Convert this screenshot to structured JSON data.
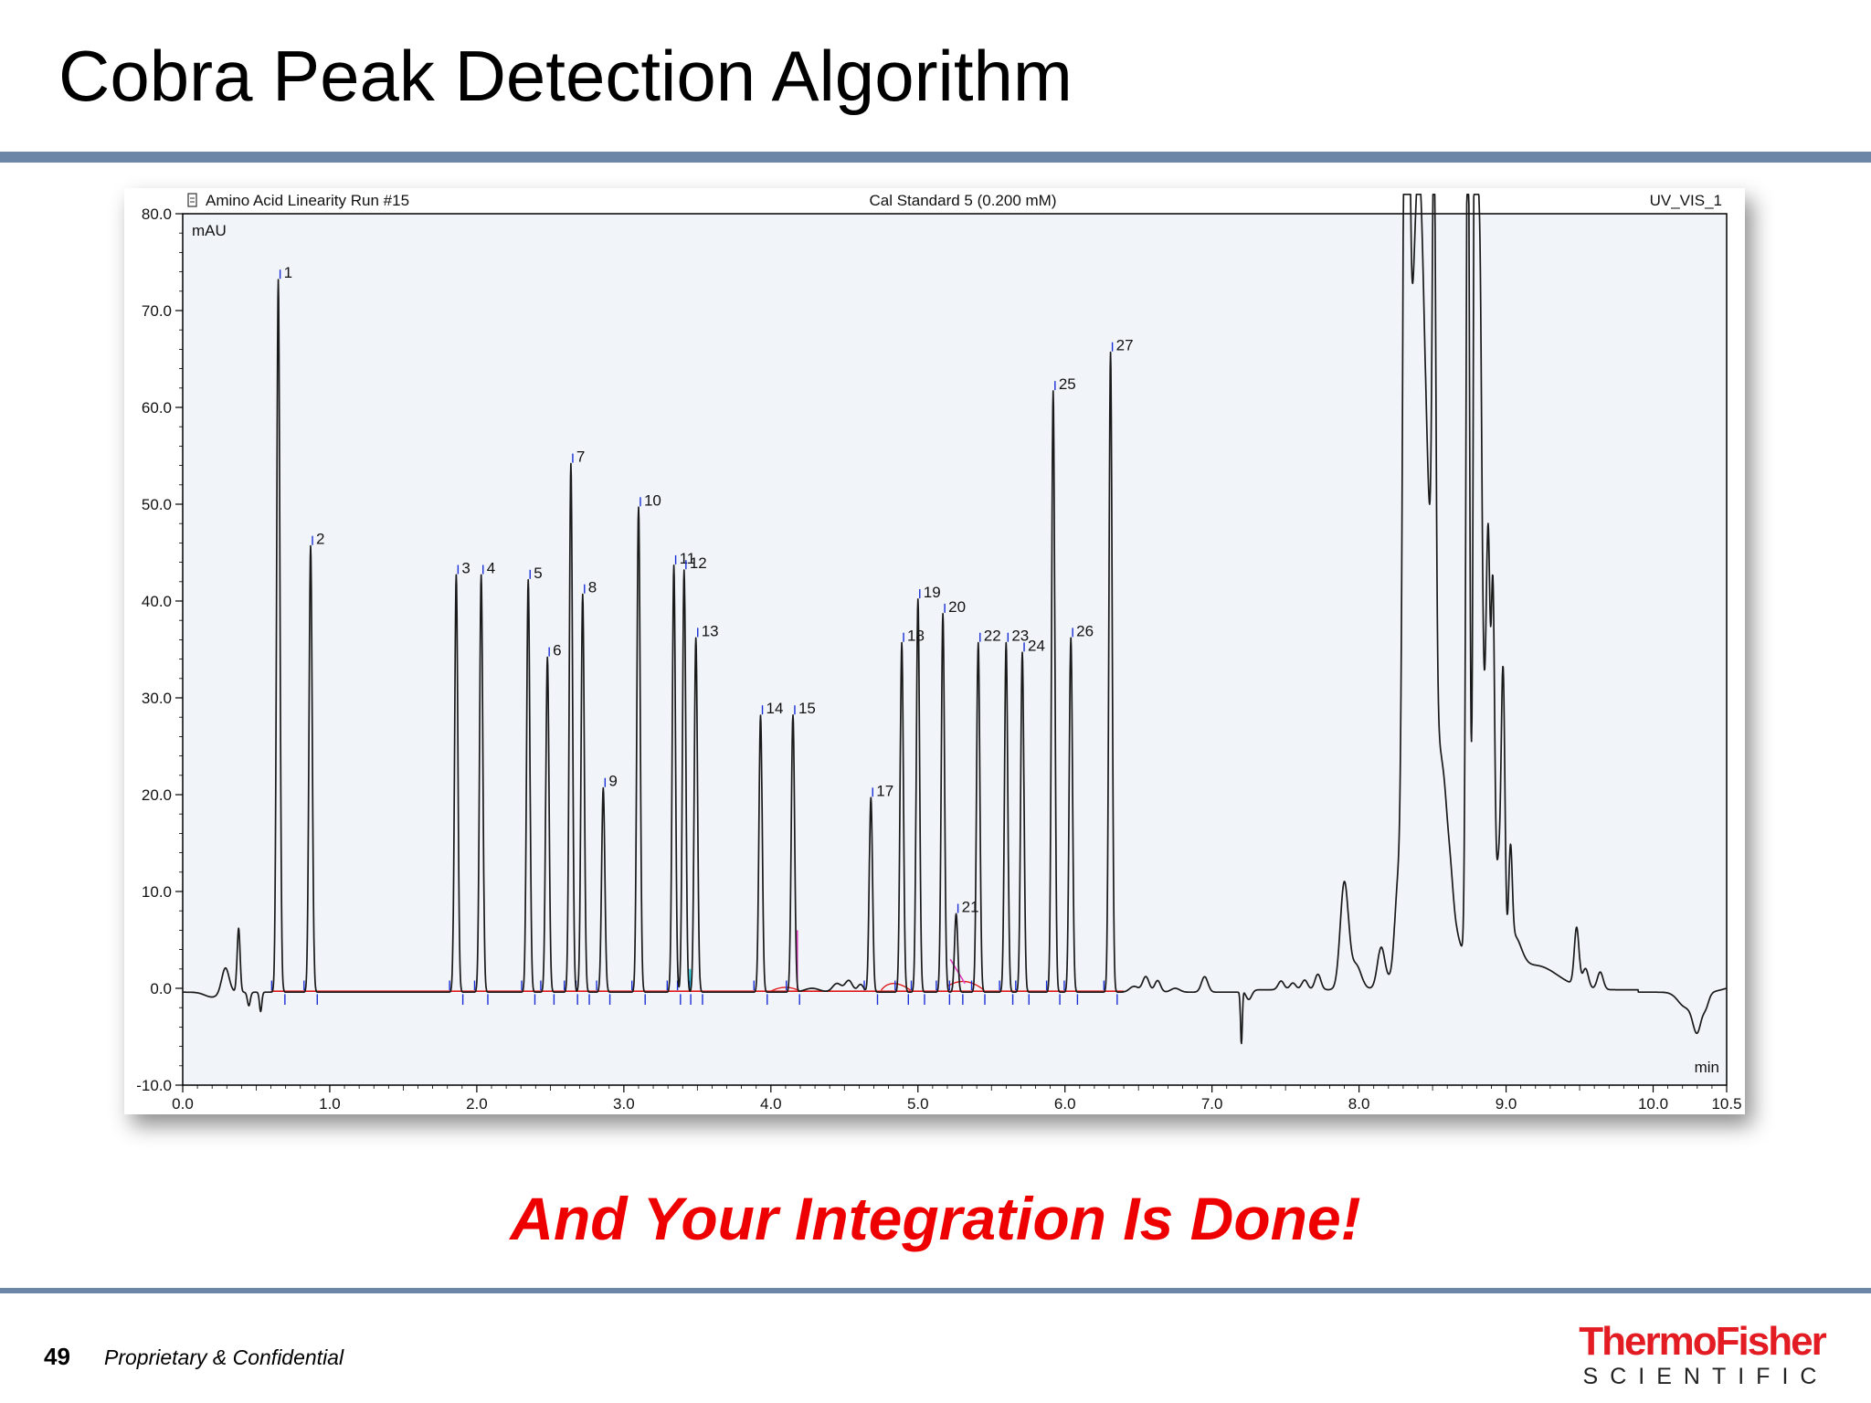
{
  "slide": {
    "title": "Cobra Peak Detection Algorithm",
    "tagline": "And Your Integration Is Done!",
    "page_number": "49",
    "confidential": "Proprietary & Confidential",
    "logo": {
      "main": "ThermoFisher",
      "sub": "SCIENTIFIC"
    }
  },
  "colors": {
    "rule": "#6b86a6",
    "tagline": "#ee0000",
    "trace": "#1a1a1a",
    "baseline": "#e01818",
    "peak_marker": "#1a2fd6",
    "plot_bg": "#f1f5fa",
    "logo_red": "#e31b23"
  },
  "chart_data": {
    "type": "line",
    "header_left": "Amino Acid Linearity Run #15",
    "header_center": "Cal Standard 5 (0.200 mM)",
    "header_right": "UV_VIS_1",
    "ylabel": "mAU",
    "xlabel": "min",
    "xlim": [
      0.0,
      10.5
    ],
    "ylim": [
      -10.0,
      80.0
    ],
    "x_ticks": [
      {
        "v": 0.0,
        "label": "0.0"
      },
      {
        "v": 1.0,
        "label": "1.0"
      },
      {
        "v": 2.0,
        "label": "2.0"
      },
      {
        "v": 3.0,
        "label": "3.0"
      },
      {
        "v": 4.0,
        "label": "4.0"
      },
      {
        "v": 5.0,
        "label": "5.0"
      },
      {
        "v": 6.0,
        "label": "6.0"
      },
      {
        "v": 7.0,
        "label": "7.0"
      },
      {
        "v": 8.0,
        "label": "8.0"
      },
      {
        "v": 9.0,
        "label": "9.0"
      },
      {
        "v": 10.0,
        "label": "10.0"
      },
      {
        "v": 10.5,
        "label": "10.5"
      }
    ],
    "y_ticks": [
      {
        "v": 80.0,
        "label": "80.0"
      },
      {
        "v": 70.0,
        "label": "70.0"
      },
      {
        "v": 60.0,
        "label": "60.0"
      },
      {
        "v": 50.0,
        "label": "50.0"
      },
      {
        "v": 40.0,
        "label": "40.0"
      },
      {
        "v": 30.0,
        "label": "30.0"
      },
      {
        "v": 20.0,
        "label": "20.0"
      },
      {
        "v": 10.0,
        "label": "10.0"
      },
      {
        "v": 0.0,
        "label": "0.0"
      },
      {
        "v": -10.0,
        "label": "-10.0"
      }
    ],
    "series": [
      {
        "peaks": [
          {
            "label": "1",
            "t": 0.65,
            "h": 73
          },
          {
            "label": "2",
            "t": 0.87,
            "h": 45.5
          },
          {
            "label": "3",
            "t": 1.86,
            "h": 42.5
          },
          {
            "label": "4",
            "t": 2.03,
            "h": 42.5
          },
          {
            "label": "5",
            "t": 2.35,
            "h": 42
          },
          {
            "label": "6",
            "t": 2.48,
            "h": 34
          },
          {
            "label": "7",
            "t": 2.64,
            "h": 54
          },
          {
            "label": "8",
            "t": 2.72,
            "h": 40.5
          },
          {
            "label": "9",
            "t": 2.86,
            "h": 20.5
          },
          {
            "label": "10",
            "t": 3.1,
            "h": 49.5
          },
          {
            "label": "11",
            "t": 3.34,
            "h": 43.5
          },
          {
            "label": "12",
            "t": 3.41,
            "h": 43
          },
          {
            "label": "13",
            "t": 3.49,
            "h": 36
          },
          {
            "label": "14",
            "t": 3.93,
            "h": 28
          },
          {
            "label": "15",
            "t": 4.15,
            "h": 28
          },
          {
            "label": "17",
            "t": 4.68,
            "h": 19.5
          },
          {
            "label": "18",
            "t": 4.89,
            "h": 35.5
          },
          {
            "label": "19",
            "t": 5.0,
            "h": 40
          },
          {
            "label": "20",
            "t": 5.17,
            "h": 38.5
          },
          {
            "label": "21",
            "t": 5.26,
            "h": 7.5
          },
          {
            "label": "22",
            "t": 5.41,
            "h": 35.5
          },
          {
            "label": "23",
            "t": 5.6,
            "h": 35.5
          },
          {
            "label": "24",
            "t": 5.71,
            "h": 34.5
          },
          {
            "label": "25",
            "t": 5.92,
            "h": 61.5
          },
          {
            "label": "26",
            "t": 6.04,
            "h": 36
          },
          {
            "label": "27",
            "t": 6.31,
            "h": 65.5
          }
        ]
      }
    ],
    "baseline_range": [
      0.6,
      6.4
    ],
    "grid": false,
    "legend": "none"
  }
}
